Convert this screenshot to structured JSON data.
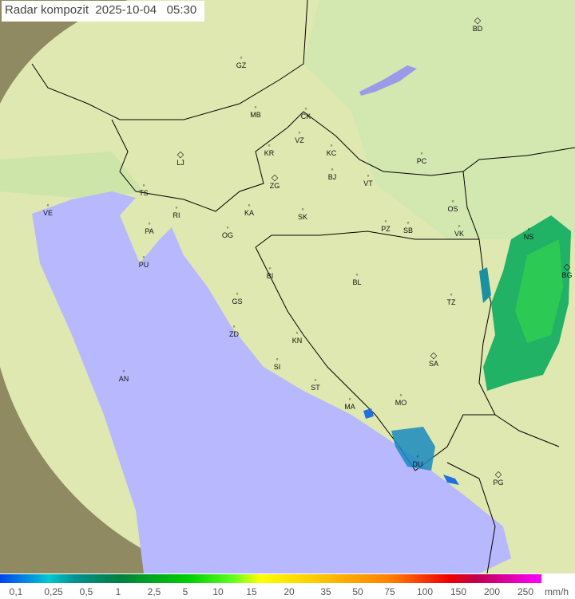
{
  "title": {
    "label": "Radar kompozit",
    "date": "2025-10-04",
    "time": "05:30"
  },
  "cities": [
    {
      "code": "GZ",
      "kind": "dot"
    },
    {
      "code": "MB",
      "kind": "dot"
    },
    {
      "code": "CK",
      "kind": "dot"
    },
    {
      "code": "VZ",
      "kind": "dot"
    },
    {
      "code": "KR",
      "kind": "dot"
    },
    {
      "code": "KC",
      "kind": "dot"
    },
    {
      "code": "LJ",
      "kind": "diamond"
    },
    {
      "code": "ZG",
      "kind": "diamond"
    },
    {
      "code": "BJ",
      "kind": "dot"
    },
    {
      "code": "VT",
      "kind": "dot"
    },
    {
      "code": "PC",
      "kind": "dot"
    },
    {
      "code": "BD",
      "kind": "diamond"
    },
    {
      "code": "TS",
      "kind": "dot"
    },
    {
      "code": "VE",
      "kind": "dot"
    },
    {
      "code": "RI",
      "kind": "dot"
    },
    {
      "code": "KA",
      "kind": "dot"
    },
    {
      "code": "SK",
      "kind": "dot"
    },
    {
      "code": "OS",
      "kind": "dot"
    },
    {
      "code": "PA",
      "kind": "dot"
    },
    {
      "code": "OG",
      "kind": "dot"
    },
    {
      "code": "PZ",
      "kind": "dot"
    },
    {
      "code": "SB",
      "kind": "dot"
    },
    {
      "code": "VK",
      "kind": "dot"
    },
    {
      "code": "NS",
      "kind": "dot"
    },
    {
      "code": "BG",
      "kind": "diamond"
    },
    {
      "code": "PU",
      "kind": "dot"
    },
    {
      "code": "BI",
      "kind": "dot"
    },
    {
      "code": "BL",
      "kind": "dot"
    },
    {
      "code": "GS",
      "kind": "dot"
    },
    {
      "code": "TZ",
      "kind": "dot"
    },
    {
      "code": "ZD",
      "kind": "dot"
    },
    {
      "code": "KN",
      "kind": "dot"
    },
    {
      "code": "SA",
      "kind": "diamond"
    },
    {
      "code": "SI",
      "kind": "dot"
    },
    {
      "code": "AN",
      "kind": "dot"
    },
    {
      "code": "ST",
      "kind": "dot"
    },
    {
      "code": "MA",
      "kind": "dot"
    },
    {
      "code": "MO",
      "kind": "dot"
    },
    {
      "code": "DU",
      "kind": "dot"
    },
    {
      "code": "PG",
      "kind": "diamond"
    }
  ],
  "legend": {
    "ticks": [
      "0,1",
      "0,25",
      "0,5",
      "1",
      "2,5",
      "5",
      "10",
      "15",
      "20",
      "35",
      "50",
      "75",
      "100",
      "150",
      "200",
      "250"
    ],
    "unit": "mm/h",
    "colors": {
      "low": "#0044ee",
      "mid": "#00d000",
      "high": "#ff00ff"
    }
  },
  "colors": {
    "sea": "#b8b8ff",
    "land": "#d8e6a8",
    "outside": "#8a8a6a",
    "echo": "#00a050"
  }
}
